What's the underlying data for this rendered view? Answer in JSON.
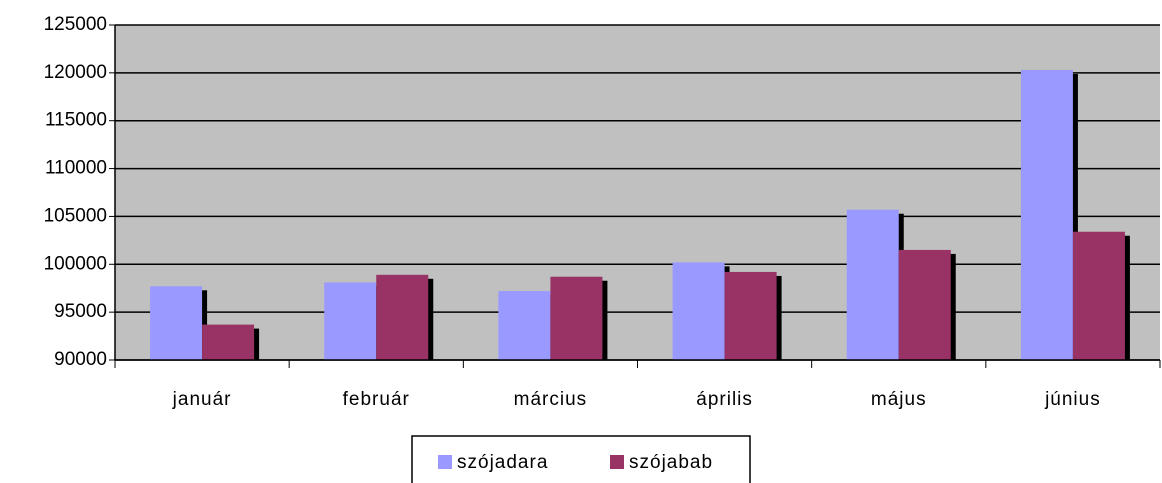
{
  "chart_data": {
    "type": "bar",
    "categories": [
      "január",
      "február",
      "március",
      "április",
      "május",
      "június"
    ],
    "series": [
      {
        "name": "szójadara",
        "color": "#9999ff",
        "values": [
          97700,
          98100,
          97200,
          100200,
          105700,
          120300
        ]
      },
      {
        "name": "szójabab",
        "color": "#993366",
        "values": [
          93700,
          98900,
          98700,
          99200,
          101500,
          103400
        ]
      }
    ],
    "ylim": [
      90000,
      125000
    ],
    "yticks": [
      90000,
      95000,
      100000,
      105000,
      110000,
      115000,
      120000,
      125000
    ],
    "grid": true,
    "legend": "bottom"
  }
}
